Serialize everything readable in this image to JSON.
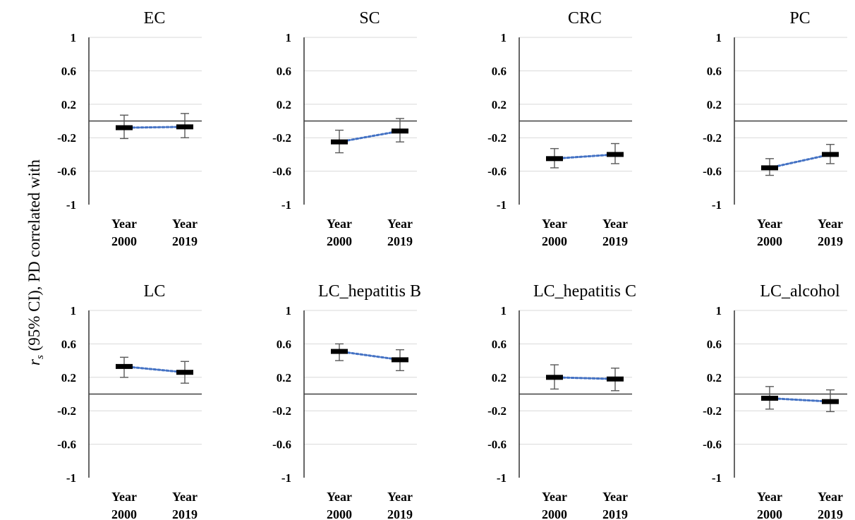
{
  "y_axis_label": {
    "prefix": "r",
    "subscript": "s",
    "rest": " (95% CI), PD correlated with"
  },
  "colors": {
    "trend_line": "#4472C4",
    "marker": "#000000",
    "error_bar": "#595959",
    "zero_line": "#404040",
    "gridline": "#d9d9d9"
  },
  "chart_data": [
    {
      "type": "line",
      "title": "EC",
      "categories": [
        [
          "Year",
          "2000"
        ],
        [
          "Year",
          "2019"
        ]
      ],
      "yticks": [
        "1",
        "0.6",
        "0.2",
        "-0.2",
        "-0.6",
        "-1"
      ],
      "ylim": [
        -1,
        1
      ],
      "grid": true,
      "series": [
        {
          "values": [
            -0.08,
            -0.07
          ],
          "ci_lower": [
            -0.21,
            -0.2
          ],
          "ci_upper": [
            0.07,
            0.09
          ]
        }
      ]
    },
    {
      "type": "line",
      "title": "SC",
      "categories": [
        [
          "Year",
          "2000"
        ],
        [
          "Year",
          "2019"
        ]
      ],
      "yticks": [
        "1",
        "0.6",
        "0.2",
        "-0.2",
        "-0.6",
        "-1"
      ],
      "ylim": [
        -1,
        1
      ],
      "grid": true,
      "series": [
        {
          "values": [
            -0.25,
            -0.12
          ],
          "ci_lower": [
            -0.38,
            -0.25
          ],
          "ci_upper": [
            -0.11,
            0.03
          ]
        }
      ]
    },
    {
      "type": "line",
      "title": "CRC",
      "categories": [
        [
          "Year",
          "2000"
        ],
        [
          "Year",
          "2019"
        ]
      ],
      "yticks": [
        "1",
        "0.6",
        "0.2",
        "-0.2",
        "-0.6",
        "-1"
      ],
      "ylim": [
        -1,
        1
      ],
      "grid": true,
      "series": [
        {
          "values": [
            -0.45,
            -0.4
          ],
          "ci_lower": [
            -0.56,
            -0.51
          ],
          "ci_upper": [
            -0.33,
            -0.27
          ]
        }
      ]
    },
    {
      "type": "line",
      "title": "PC",
      "categories": [
        [
          "Year",
          "2000"
        ],
        [
          "Year",
          "2019"
        ]
      ],
      "yticks": [
        "1",
        "0.6",
        "0.2",
        "-0.2",
        "-0.6",
        "-1"
      ],
      "ylim": [
        -1,
        1
      ],
      "grid": true,
      "series": [
        {
          "values": [
            -0.56,
            -0.4
          ],
          "ci_lower": [
            -0.65,
            -0.51
          ],
          "ci_upper": [
            -0.45,
            -0.28
          ]
        }
      ]
    },
    {
      "type": "line",
      "title": "LC",
      "categories": [
        [
          "Year",
          "2000"
        ],
        [
          "Year",
          "2019"
        ]
      ],
      "yticks": [
        "1",
        "0.6",
        "0.2",
        "-0.2",
        "-0.6",
        "-1"
      ],
      "ylim": [
        -1,
        1
      ],
      "grid": true,
      "series": [
        {
          "values": [
            0.33,
            0.26
          ],
          "ci_lower": [
            0.2,
            0.13
          ],
          "ci_upper": [
            0.44,
            0.39
          ]
        }
      ]
    },
    {
      "type": "line",
      "title": "LC_hepatitis B",
      "categories": [
        [
          "Year",
          "2000"
        ],
        [
          "Year",
          "2019"
        ]
      ],
      "yticks": [
        "1",
        "0.6",
        "0.2",
        "-0.2",
        "-0.6",
        "-1"
      ],
      "ylim": [
        -1,
        1
      ],
      "grid": true,
      "series": [
        {
          "values": [
            0.51,
            0.41
          ],
          "ci_lower": [
            0.4,
            0.28
          ],
          "ci_upper": [
            0.6,
            0.53
          ]
        }
      ]
    },
    {
      "type": "line",
      "title": "LC_hepatitis C",
      "categories": [
        [
          "Year",
          "2000"
        ],
        [
          "Year",
          "2019"
        ]
      ],
      "yticks": [
        "1",
        "0.6",
        "0.2",
        "-0.2",
        "-0.6",
        "-1"
      ],
      "ylim": [
        -1,
        1
      ],
      "grid": true,
      "series": [
        {
          "values": [
            0.2,
            0.18
          ],
          "ci_lower": [
            0.06,
            0.04
          ],
          "ci_upper": [
            0.35,
            0.31
          ]
        }
      ]
    },
    {
      "type": "line",
      "title": "LC_alcohol",
      "categories": [
        [
          "Year",
          "2000"
        ],
        [
          "Year",
          "2019"
        ]
      ],
      "yticks": [
        "1",
        "0.6",
        "0.2",
        "-0.2",
        "-0.6",
        "-1"
      ],
      "ylim": [
        -1,
        1
      ],
      "grid": true,
      "series": [
        {
          "values": [
            -0.05,
            -0.09
          ],
          "ci_lower": [
            -0.18,
            -0.21
          ],
          "ci_upper": [
            0.09,
            0.05
          ]
        }
      ]
    }
  ]
}
